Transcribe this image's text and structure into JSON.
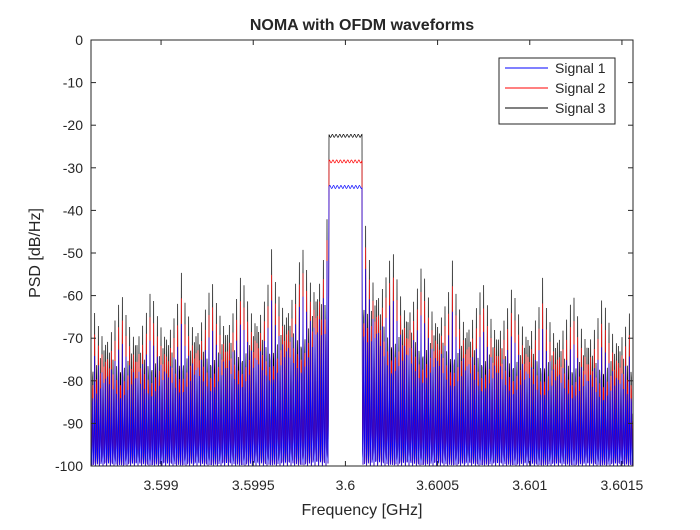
{
  "chart_data": {
    "type": "line",
    "title": "NOMA with OFDM waveforms",
    "xlabel": "Frequency [GHz]",
    "ylabel": "PSD [dB/Hz]",
    "xlim": [
      3.59862,
      3.60156
    ],
    "ylim": [
      -100,
      0
    ],
    "grid": false,
    "box": true,
    "legend_position": "top-right",
    "x_ticks": [
      3.599,
      3.5995,
      3.6,
      3.6005,
      3.601,
      3.6015
    ],
    "x_tick_labels": [
      "3.599",
      "3.5995",
      "3.6",
      "3.6005",
      "3.601",
      "3.6015"
    ],
    "y_ticks": [
      0,
      -10,
      -20,
      -30,
      -40,
      -50,
      -60,
      -70,
      -80,
      -90,
      -100
    ],
    "y_tick_labels": [
      "0",
      "-10",
      "-20",
      "-30",
      "-40",
      "-50",
      "-60",
      "-70",
      "-80",
      "-90",
      "-100"
    ],
    "band": {
      "start": 3.59991,
      "end": 3.60009
    },
    "notch_spacing_ghz": 1e-05,
    "series": [
      {
        "name": "Signal 1",
        "color": "#0000ff",
        "in_band_level": -34.5,
        "edge_peak": -37,
        "far_out_peak": -69.5,
        "notch_floor": -100
      },
      {
        "name": "Signal 2",
        "color": "#ff0000",
        "in_band_level": -28.5,
        "edge_peak": -31,
        "far_out_peak": -63.5,
        "notch_floor": -100
      },
      {
        "name": "Signal 3",
        "color": "#000000",
        "in_band_level": -22.5,
        "edge_peak": -25,
        "far_out_peak": -57.5,
        "notch_floor": -100
      }
    ]
  }
}
